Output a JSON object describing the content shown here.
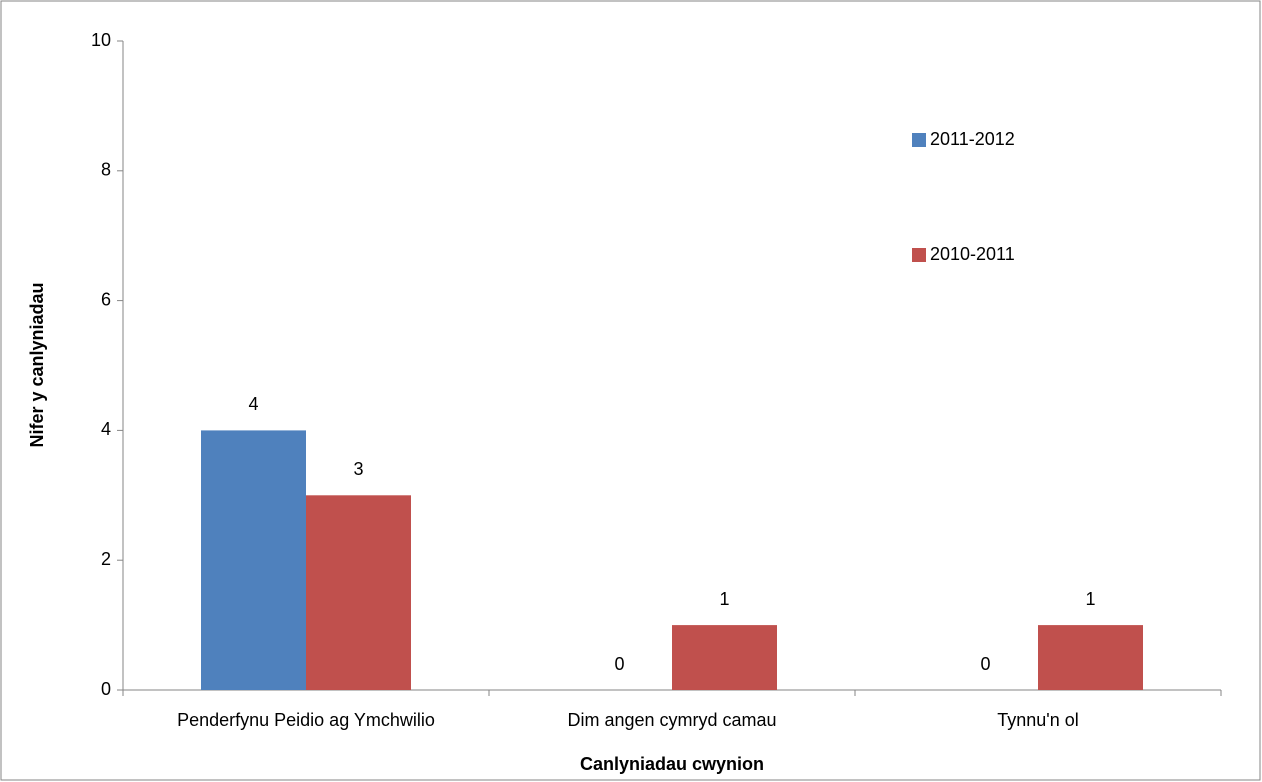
{
  "chart_data": {
    "type": "bar",
    "x_label": "Canlyniadau cwynion",
    "y_label": "Nifer y canlyniadau",
    "categories": [
      "Penderfynu Peidio ag Ymchwilio",
      "Dim angen cymryd camau",
      "Tynnu'n ol"
    ],
    "series": [
      {
        "name": "2011-2012",
        "color": "#4f81bd",
        "values": [
          4,
          0,
          0
        ]
      },
      {
        "name": "2010-2011",
        "color": "#c0504d",
        "values": [
          3,
          1,
          1
        ]
      }
    ],
    "ylim": [
      0,
      10
    ],
    "yticks": [
      0,
      2,
      4,
      6,
      8,
      10
    ],
    "grid": false,
    "legend": "right"
  }
}
